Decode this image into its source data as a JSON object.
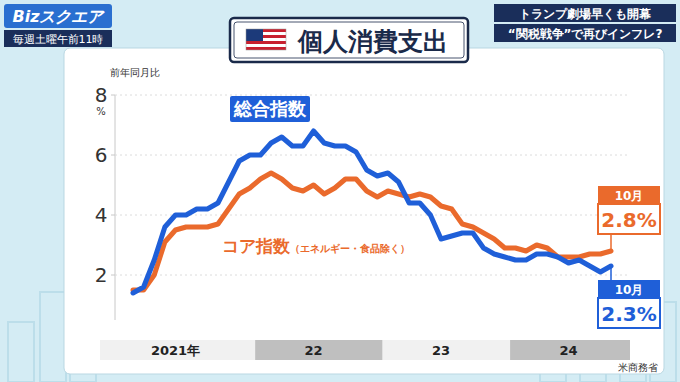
{
  "header": {
    "logo": "Bizスクエア",
    "schedule": "毎週土曜午前11時",
    "headlines": [
      "トランプ劇場早くも開幕",
      "“関税戦争”で再びインフレ?"
    ]
  },
  "chart_data": {
    "type": "line",
    "title": "個人消費支出",
    "ylabel": "前年同月比",
    "y_unit": "%",
    "source": "米商務省",
    "categories": [
      null,
      null,
      null,
      null,
      "2021年",
      null,
      null,
      null,
      null,
      null,
      null,
      null,
      null,
      null,
      null,
      null,
      null,
      "22",
      null,
      null,
      null,
      null,
      null,
      null,
      null,
      null,
      null,
      null,
      null,
      "23",
      null,
      null,
      null,
      null,
      null,
      null,
      null,
      null,
      null,
      null,
      null,
      "24",
      null,
      null,
      null,
      null
    ],
    "series": [
      {
        "name": "総合指数",
        "color": "#1f5fd8",
        "values": [
          1.4,
          1.6,
          2.5,
          3.6,
          4.0,
          4.0,
          4.2,
          4.2,
          4.4,
          5.1,
          5.8,
          6.0,
          6.0,
          6.4,
          6.6,
          6.3,
          6.3,
          6.8,
          6.4,
          6.3,
          6.3,
          6.1,
          5.5,
          5.3,
          5.4,
          5.1,
          4.4,
          4.4,
          4.0,
          3.2,
          3.3,
          3.4,
          3.4,
          2.9,
          2.7,
          2.6,
          2.5,
          2.5,
          2.7,
          2.7,
          2.6,
          2.4,
          2.5,
          2.3,
          2.1,
          2.3
        ],
        "value_labels": [
          null,
          null,
          null,
          null,
          null,
          null,
          null,
          null,
          null,
          null,
          null,
          null,
          null,
          null,
          null,
          null,
          null,
          null,
          null,
          null,
          null,
          null,
          null,
          null,
          null,
          null,
          null,
          null,
          null,
          null,
          null,
          null,
          null,
          null,
          null,
          null,
          null,
          null,
          null,
          null,
          null,
          null,
          null,
          null,
          null,
          "2.3%"
        ],
        "end_note": "10月"
      },
      {
        "name": "コア指数",
        "note": "（エネルギー・食品除く）",
        "color": "#ea6a2c",
        "values": [
          1.5,
          1.5,
          2.0,
          3.1,
          3.5,
          3.6,
          3.6,
          3.6,
          3.7,
          4.2,
          4.7,
          4.9,
          5.2,
          5.4,
          5.2,
          4.9,
          4.8,
          5.0,
          4.7,
          4.9,
          5.2,
          5.2,
          4.8,
          4.6,
          4.8,
          4.7,
          4.6,
          4.7,
          4.6,
          4.3,
          4.2,
          3.7,
          3.6,
          3.4,
          3.2,
          2.9,
          2.9,
          2.8,
          3.0,
          2.9,
          2.6,
          2.6,
          2.6,
          2.7,
          2.7,
          2.8
        ],
        "value_labels": [
          null,
          null,
          null,
          null,
          null,
          null,
          null,
          null,
          null,
          null,
          null,
          null,
          null,
          null,
          null,
          null,
          null,
          null,
          null,
          null,
          null,
          null,
          null,
          null,
          null,
          null,
          null,
          null,
          null,
          null,
          null,
          null,
          null,
          null,
          null,
          null,
          null,
          null,
          null,
          null,
          null,
          null,
          null,
          null,
          null,
          "2.8%"
        ],
        "end_note": "10月"
      }
    ],
    "ylim": [
      0.5,
      8
    ],
    "yticks": [
      2,
      4,
      6,
      8
    ],
    "grid": true
  }
}
